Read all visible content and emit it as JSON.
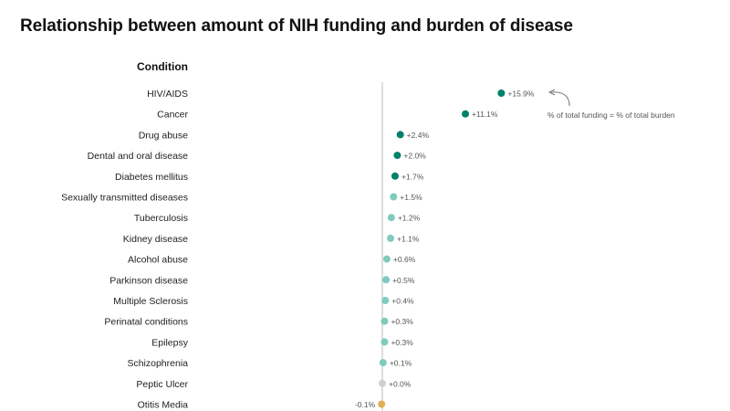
{
  "title": "Relationship between amount of NIH funding and burden of disease",
  "chart_data": {
    "type": "scatter",
    "title": "Relationship between amount of NIH funding and burden of disease",
    "category_header": "Condition",
    "categories": [
      "HIV/AIDS",
      "Cancer",
      "Drug abuse",
      "Dental and oral disease",
      "Diabetes mellitus",
      "Sexually transmitted diseases",
      "Tuberculosis",
      "Kidney disease",
      "Alcohol abuse",
      "Parkinson disease",
      "Multiple Sclerosis",
      "Perinatal conditions",
      "Epilepsy",
      "Schizophrenia",
      "Peptic Ulcer",
      "Otitis Media"
    ],
    "values": [
      15.9,
      11.1,
      2.4,
      2.0,
      1.7,
      1.5,
      1.2,
      1.1,
      0.6,
      0.5,
      0.4,
      0.3,
      0.3,
      0.1,
      0.0,
      -0.1
    ],
    "value_labels": [
      "+15.9%",
      "+11.1%",
      "+2.4%",
      "+2.0%",
      "+1.7%",
      "+1.5%",
      "+1.2%",
      "+1.1%",
      "+0.6%",
      "+0.5%",
      "+0.4%",
      "+0.3%",
      "+0.3%",
      "+0.1%",
      "+0.0%",
      "-0.1%"
    ],
    "reference_line": 0,
    "annotation": "% of total funding = % of total burden",
    "colors": {
      "high": "#00806a",
      "low": "#7fcbbe",
      "zero": "#cfcfcf",
      "negative": "#e2b054",
      "reference": "#bbbbbb"
    }
  }
}
